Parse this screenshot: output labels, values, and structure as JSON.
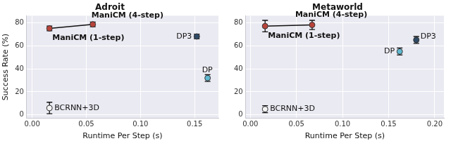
{
  "chart_data": [
    {
      "type": "scatter",
      "title": "Adroit",
      "x_label": "Runtime Per Step (s)",
      "y_label": "Success Rate (%)",
      "xlim": [
        -0.005,
        0.172
      ],
      "xticks": [
        {
          "value": 0,
          "label": "0.00"
        },
        {
          "value": 0.05,
          "label": "0.05"
        },
        {
          "value": 0.1,
          "label": "0.10"
        },
        {
          "value": 0.15,
          "label": "0.15"
        }
      ],
      "ylim": [
        -3,
        86
      ],
      "yticks": [
        0,
        20,
        40,
        60,
        80
      ],
      "grid": true,
      "series": [
        {
          "labels": [
            "ManiCM (1-step)",
            "ManiCM (4-step)"
          ],
          "color": "#b8433a",
          "marker": "o",
          "line_style": "solid",
          "x": [
            0.016,
            0.056
          ],
          "values": [
            75,
            78.5
          ],
          "errors": [
            2,
            2
          ]
        },
        {
          "labels": [
            "DP3"
          ],
          "color": "#2e4a66",
          "marker": "o",
          "x": [
            0.152
          ],
          "values": [
            68
          ],
          "errors": [
            2
          ]
        },
        {
          "labels": [
            "DP"
          ],
          "color": "#5fb8d0",
          "marker": "o",
          "x": [
            0.162
          ],
          "values": [
            32
          ],
          "errors": [
            3
          ]
        },
        {
          "labels": [
            "BCRNN+3D"
          ],
          "color": "#f4f4f4",
          "marker": "o",
          "x": [
            0.016
          ],
          "values": [
            6
          ],
          "errors": [
            5
          ]
        }
      ]
    },
    {
      "type": "scatter",
      "title": "Metaworld",
      "x_label": "Runtime Per Step (s)",
      "xlim": [
        -0.005,
        0.21
      ],
      "xticks": [
        {
          "value": 0,
          "label": "0.00"
        },
        {
          "value": 0.05,
          "label": "0.05"
        },
        {
          "value": 0.1,
          "label": "0.10"
        },
        {
          "value": 0.15,
          "label": "0.15"
        },
        {
          "value": 0.2,
          "label": "0.20"
        }
      ],
      "ylim": [
        -3,
        86
      ],
      "yticks": [
        0,
        20,
        40,
        60,
        80
      ],
      "grid": true,
      "series": [
        {
          "labels": [
            "ManiCM (1-step)",
            "ManiCM (4-step)"
          ],
          "color": "#b8433a",
          "marker": "o",
          "line_style": "solid",
          "x": [
            0.016,
            0.067
          ],
          "values": [
            77,
            78
          ],
          "errors": [
            5,
            4
          ]
        },
        {
          "labels": [
            "DP"
          ],
          "color": "#5fb8d0",
          "marker": "o",
          "x": [
            0.162
          ],
          "values": [
            55
          ],
          "errors": [
            3
          ]
        },
        {
          "labels": [
            "DP3"
          ],
          "color": "#2e4a66",
          "marker": "o",
          "x": [
            0.18
          ],
          "values": [
            65
          ],
          "errors": [
            3
          ]
        },
        {
          "labels": [
            "BCRNN+3D"
          ],
          "color": "#f4f4f4",
          "marker": "o",
          "x": [
            0.016
          ],
          "values": [
            5
          ],
          "errors": [
            3
          ]
        }
      ]
    }
  ]
}
